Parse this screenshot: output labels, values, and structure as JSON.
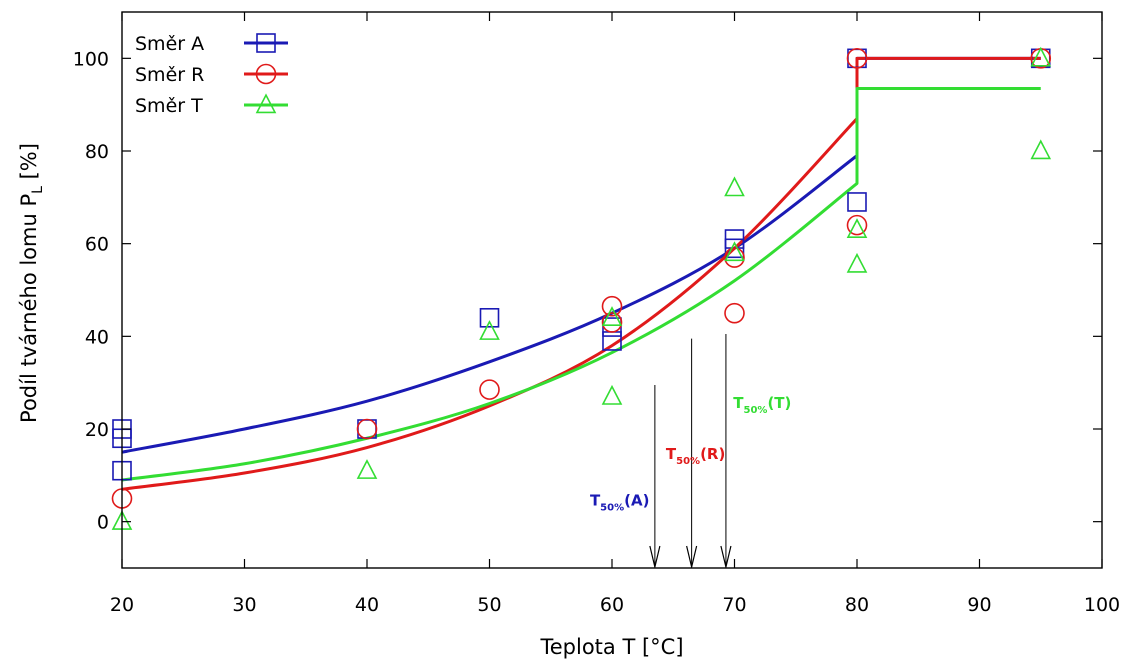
{
  "chart_data": {
    "type": "scatter",
    "xlabel": "Teplota T [°C]",
    "ylabel_main": "Podíl tvárného lomu P",
    "ylabel_sub": "L",
    "ylabel_unit": " [%]",
    "xlim": [
      20,
      100
    ],
    "ylim": [
      -10,
      110
    ],
    "xticks": [
      20,
      30,
      40,
      50,
      60,
      70,
      80,
      90,
      100
    ],
    "yticks": [
      0,
      20,
      40,
      60,
      80,
      100
    ],
    "grid": false,
    "legend_position": "top-left",
    "series": [
      {
        "name": "Směr A",
        "color": "#1a1ab4",
        "marker": "square",
        "points": [
          [
            20,
            20
          ],
          [
            20,
            18
          ],
          [
            20,
            11
          ],
          [
            40,
            20
          ],
          [
            50,
            44
          ],
          [
            60,
            42
          ],
          [
            60,
            39
          ],
          [
            70,
            61
          ],
          [
            70,
            59
          ],
          [
            80,
            69
          ],
          [
            80,
            100
          ],
          [
            95,
            100
          ]
        ],
        "fit": [
          [
            20,
            15
          ],
          [
            30,
            20
          ],
          [
            40,
            26
          ],
          [
            50,
            34.5
          ],
          [
            60,
            45
          ],
          [
            70,
            59
          ],
          [
            80,
            79
          ],
          [
            80,
            100
          ],
          [
            95,
            100
          ]
        ]
      },
      {
        "name": "Směr R",
        "color": "#e01a1a",
        "marker": "circle",
        "points": [
          [
            20,
            5
          ],
          [
            40,
            20
          ],
          [
            50,
            28.5
          ],
          [
            60,
            46.5
          ],
          [
            60,
            43
          ],
          [
            70,
            57
          ],
          [
            70,
            45
          ],
          [
            80,
            64
          ],
          [
            80,
            100
          ],
          [
            95,
            100
          ]
        ],
        "fit": [
          [
            20,
            7
          ],
          [
            30,
            10.5
          ],
          [
            40,
            16
          ],
          [
            50,
            25
          ],
          [
            60,
            38
          ],
          [
            70,
            59
          ],
          [
            80,
            87
          ],
          [
            80,
            100
          ],
          [
            95,
            100
          ]
        ]
      },
      {
        "name": "Směr T",
        "color": "#33dd33",
        "marker": "triangle",
        "points": [
          [
            20,
            0
          ],
          [
            40,
            11
          ],
          [
            50,
            41
          ],
          [
            60,
            44
          ],
          [
            60,
            27
          ],
          [
            70,
            72
          ],
          [
            70,
            58
          ],
          [
            80,
            63
          ],
          [
            80,
            55.5
          ],
          [
            95,
            100
          ],
          [
            95,
            80
          ]
        ],
        "fit": [
          [
            20,
            9
          ],
          [
            30,
            12.5
          ],
          [
            40,
            18
          ],
          [
            50,
            25.5
          ],
          [
            60,
            36.5
          ],
          [
            70,
            52
          ],
          [
            80,
            73
          ],
          [
            80,
            93.5
          ],
          [
            95,
            93.5
          ]
        ]
      }
    ],
    "annotations": [
      {
        "main": "T",
        "sub": "50%",
        "suffix": "(A)",
        "color": "#1a1ab4",
        "arrow_x": 63.5,
        "label_x": 58.2,
        "label_y": 3.5
      },
      {
        "main": "T",
        "sub": "50%",
        "suffix": "(R)",
        "color": "#e01a1a",
        "arrow_x": 66.5,
        "label_x": 64.4,
        "label_y": 13.5
      },
      {
        "main": "T",
        "sub": "50%",
        "suffix": "(T)",
        "color": "#33dd33",
        "arrow_x": 69.3,
        "label_x": 69.9,
        "label_y": 24.5
      }
    ]
  }
}
